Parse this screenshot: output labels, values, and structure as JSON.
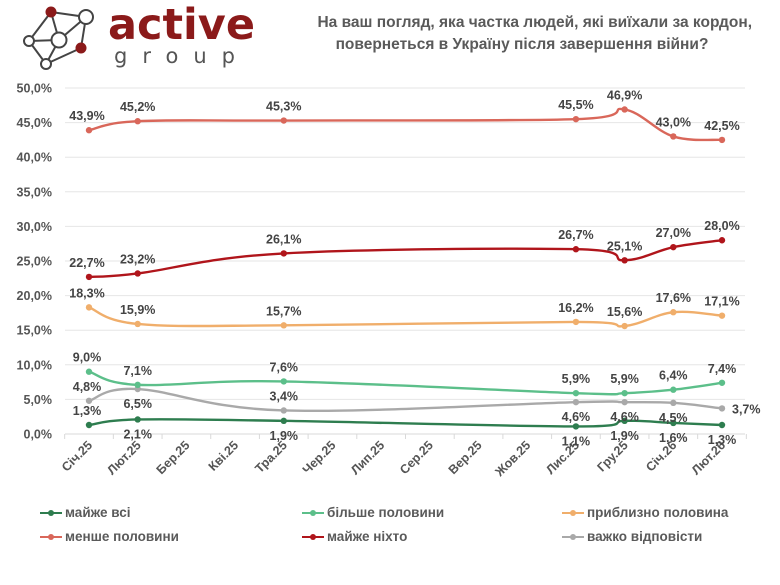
{
  "logo": {
    "word1": "active",
    "word2": "group",
    "colors": {
      "red": "#8b1a1a",
      "gray": "#555555"
    }
  },
  "title": {
    "line1": "На ваш погляд, яка частка людей, які виїхали за кордон,",
    "line2": "повернеться в Україну після завершення війни?"
  },
  "chart_data": {
    "type": "line",
    "title": "На ваш погляд, яка частка людей, які виїхали за кордон, повернеться в Україну після завершення війни?",
    "xlabel": "",
    "ylabel": "",
    "ylim": [
      0,
      50
    ],
    "yticks": [
      "0,0%",
      "5,0%",
      "10,0%",
      "15,0%",
      "20,0%",
      "25,0%",
      "30,0%",
      "35,0%",
      "40,0%",
      "45,0%",
      "50,0%"
    ],
    "grid": true,
    "legend_position": "bottom",
    "categories": [
      "Січ.25",
      "Лют.25",
      "Бер.25",
      "Кві.25",
      "Тра.25",
      "Чер.25",
      "Лип.25",
      "Сер.25",
      "Вер.25",
      "Жов.25",
      "Лис.25",
      "Гру.25",
      "Січ.26",
      "Лют.26"
    ],
    "series": [
      {
        "name": "майже всі",
        "color": "#2e7d4f",
        "values": [
          1.3,
          2.1,
          null,
          null,
          1.9,
          null,
          null,
          null,
          null,
          null,
          1.1,
          1.9,
          1.6,
          1.3
        ],
        "labels": [
          "1,3%",
          "2,1%",
          null,
          null,
          "1,9%",
          null,
          null,
          null,
          null,
          null,
          "1,1%",
          "1,9%",
          "1,6%",
          "1,3%"
        ],
        "label_pos": [
          "above",
          "below",
          null,
          null,
          "below",
          null,
          null,
          null,
          null,
          null,
          "below",
          "below",
          "below",
          "below"
        ]
      },
      {
        "name": "більше половини",
        "color": "#5cbf8a",
        "values": [
          9.0,
          7.1,
          null,
          null,
          7.6,
          null,
          null,
          null,
          null,
          null,
          5.9,
          5.9,
          6.4,
          7.4
        ],
        "labels": [
          "9,0%",
          "7,1%",
          null,
          null,
          "7,6%",
          null,
          null,
          null,
          null,
          null,
          "5,9%",
          "5,9%",
          "6,4%",
          "7,4%"
        ],
        "label_pos": [
          "above",
          "above",
          null,
          null,
          "above",
          null,
          null,
          null,
          null,
          null,
          "above",
          "above",
          "above",
          "above"
        ]
      },
      {
        "name": "приблизно половина",
        "color": "#f0ae6b",
        "values": [
          18.3,
          15.9,
          null,
          null,
          15.7,
          null,
          null,
          null,
          null,
          null,
          16.2,
          15.6,
          17.6,
          17.1
        ],
        "labels": [
          "18,3%",
          "15,9%",
          null,
          null,
          "15,7%",
          null,
          null,
          null,
          null,
          null,
          "16,2%",
          "15,6%",
          "17,6%",
          "17,1%"
        ],
        "label_pos": [
          "above",
          "above",
          null,
          null,
          "above",
          null,
          null,
          null,
          null,
          null,
          "above",
          "above",
          "above",
          "above"
        ]
      },
      {
        "name": "менше половини",
        "color": "#d9675a",
        "values": [
          43.9,
          45.2,
          null,
          null,
          45.3,
          null,
          null,
          null,
          null,
          null,
          45.5,
          46.9,
          43.0,
          42.5
        ],
        "labels": [
          "43,9%",
          "45,2%",
          null,
          null,
          "45,3%",
          null,
          null,
          null,
          null,
          null,
          "45,5%",
          "46,9%",
          "43,0%",
          "42,5%"
        ],
        "label_pos": [
          "above",
          "above",
          null,
          null,
          "above",
          null,
          null,
          null,
          null,
          null,
          "above",
          "above",
          "above",
          "above"
        ]
      },
      {
        "name": "майже ніхто",
        "color": "#b0151b",
        "values": [
          22.7,
          23.2,
          null,
          null,
          26.1,
          null,
          null,
          null,
          null,
          null,
          26.7,
          25.1,
          27.0,
          28.0
        ],
        "labels": [
          "22,7%",
          "23,2%",
          null,
          null,
          "26,1%",
          null,
          null,
          null,
          null,
          null,
          "26,7%",
          "25,1%",
          "27,0%",
          "28,0%"
        ],
        "label_pos": [
          "above",
          "above",
          null,
          null,
          "above",
          null,
          null,
          null,
          null,
          null,
          "above",
          "above",
          "above",
          "above"
        ]
      },
      {
        "name": "важко відповісти",
        "color": "#a9a9a9",
        "values": [
          4.8,
          6.5,
          null,
          null,
          3.4,
          null,
          null,
          null,
          null,
          null,
          4.6,
          4.6,
          4.5,
          3.7
        ],
        "labels": [
          "4,8%",
          "6,5%",
          null,
          null,
          "3,4%",
          null,
          null,
          null,
          null,
          null,
          "4,6%",
          "4,6%",
          "4,5%",
          "3,7%"
        ],
        "label_pos": [
          "above",
          "below",
          null,
          null,
          "above",
          null,
          null,
          null,
          null,
          null,
          "below",
          "below",
          "below",
          "right"
        ]
      }
    ]
  }
}
